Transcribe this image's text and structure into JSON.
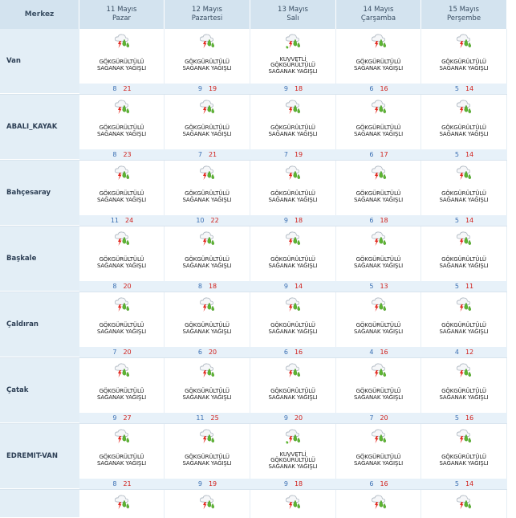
{
  "header": {
    "merkez_label": "Merkez",
    "days": [
      {
        "date": "11 Mayıs",
        "weekday": "Pazar"
      },
      {
        "date": "12 Mayıs",
        "weekday": "Pazartesi"
      },
      {
        "date": "13 Mayıs",
        "weekday": "Salı"
      },
      {
        "date": "14 Mayıs",
        "weekday": "Çarşamba"
      },
      {
        "date": "15 Mayıs",
        "weekday": "Perşembe"
      }
    ]
  },
  "colors": {
    "min_temp": "#3a6fb3",
    "max_temp": "#d0201b",
    "header_bg": "#d3e3ef",
    "city_bg": "#e3eef6"
  },
  "rows": [
    {
      "city": "Van",
      "days": [
        {
          "icon": "thunderstorm-icon",
          "lines": [
            "GÖKGÜRÜLTÜLÜ",
            "SAĞANAK YAĞIŞLI"
          ],
          "min": "8",
          "max": "21"
        },
        {
          "icon": "thunderstorm-icon",
          "lines": [
            "GÖKGÜRÜLTÜLÜ",
            "SAĞANAK YAĞIŞLI"
          ],
          "min": "9",
          "max": "19"
        },
        {
          "icon": "strong-thunderstorm-icon",
          "lines": [
            "KUVVETLİ",
            "GÖKGÜRÜLTÜLÜ",
            "SAĞANAK YAĞIŞLI"
          ],
          "min": "9",
          "max": "18"
        },
        {
          "icon": "thunderstorm-icon",
          "lines": [
            "GÖKGÜRÜLTÜLÜ",
            "SAĞANAK YAĞIŞLI"
          ],
          "min": "6",
          "max": "16"
        },
        {
          "icon": "thunderstorm-icon",
          "lines": [
            "GÖKGÜRÜLTÜLÜ",
            "SAĞANAK YAĞIŞLI"
          ],
          "min": "5",
          "max": "14"
        }
      ]
    },
    {
      "city": "ABALI_KAYAK",
      "days": [
        {
          "icon": "thunderstorm-icon",
          "lines": [
            "GÖKGÜRÜLTÜLÜ",
            "SAĞANAK YAĞIŞLI"
          ],
          "min": "8",
          "max": "23"
        },
        {
          "icon": "thunderstorm-icon",
          "lines": [
            "GÖKGÜRÜLTÜLÜ",
            "SAĞANAK YAĞIŞLI"
          ],
          "min": "7",
          "max": "21"
        },
        {
          "icon": "thunderstorm-icon",
          "lines": [
            "GÖKGÜRÜLTÜLÜ",
            "SAĞANAK YAĞIŞLI"
          ],
          "min": "7",
          "max": "19"
        },
        {
          "icon": "thunderstorm-icon",
          "lines": [
            "GÖKGÜRÜLTÜLÜ",
            "SAĞANAK YAĞIŞLI"
          ],
          "min": "6",
          "max": "17"
        },
        {
          "icon": "thunderstorm-icon",
          "lines": [
            "GÖKGÜRÜLTÜLÜ",
            "SAĞANAK YAĞIŞLI"
          ],
          "min": "5",
          "max": "14"
        }
      ]
    },
    {
      "city": "Bahçesaray",
      "days": [
        {
          "icon": "thunderstorm-icon",
          "lines": [
            "GÖKGÜRÜLTÜLÜ",
            "SAĞANAK YAĞIŞLI"
          ],
          "min": "11",
          "max": "24"
        },
        {
          "icon": "thunderstorm-icon",
          "lines": [
            "GÖKGÜRÜLTÜLÜ",
            "SAĞANAK YAĞIŞLI"
          ],
          "min": "10",
          "max": "22"
        },
        {
          "icon": "thunderstorm-icon",
          "lines": [
            "GÖKGÜRÜLTÜLÜ",
            "SAĞANAK YAĞIŞLI"
          ],
          "min": "9",
          "max": "18"
        },
        {
          "icon": "thunderstorm-icon",
          "lines": [
            "GÖKGÜRÜLTÜLÜ",
            "SAĞANAK YAĞIŞLI"
          ],
          "min": "6",
          "max": "18"
        },
        {
          "icon": "thunderstorm-icon",
          "lines": [
            "GÖKGÜRÜLTÜLÜ",
            "SAĞANAK YAĞIŞLI"
          ],
          "min": "5",
          "max": "14"
        }
      ]
    },
    {
      "city": "Başkale",
      "days": [
        {
          "icon": "thunderstorm-icon",
          "lines": [
            "GÖKGÜRÜLTÜLÜ",
            "SAĞANAK YAĞIŞLI"
          ],
          "min": "8",
          "max": "20"
        },
        {
          "icon": "thunderstorm-icon",
          "lines": [
            "GÖKGÜRÜLTÜLÜ",
            "SAĞANAK YAĞIŞLI"
          ],
          "min": "8",
          "max": "18"
        },
        {
          "icon": "thunderstorm-icon",
          "lines": [
            "GÖKGÜRÜLTÜLÜ",
            "SAĞANAK YAĞIŞLI"
          ],
          "min": "9",
          "max": "14"
        },
        {
          "icon": "thunderstorm-icon",
          "lines": [
            "GÖKGÜRÜLTÜLÜ",
            "SAĞANAK YAĞIŞLI"
          ],
          "min": "5",
          "max": "13"
        },
        {
          "icon": "thunderstorm-icon",
          "lines": [
            "GÖKGÜRÜLTÜLÜ",
            "SAĞANAK YAĞIŞLI"
          ],
          "min": "5",
          "max": "11"
        }
      ]
    },
    {
      "city": "Çaldıran",
      "days": [
        {
          "icon": "thunderstorm-icon",
          "lines": [
            "GÖKGÜRÜLTÜLÜ",
            "SAĞANAK YAĞIŞLI"
          ],
          "min": "7",
          "max": "20"
        },
        {
          "icon": "thunderstorm-icon",
          "lines": [
            "GÖKGÜRÜLTÜLÜ",
            "SAĞANAK YAĞIŞLI"
          ],
          "min": "6",
          "max": "20"
        },
        {
          "icon": "thunderstorm-icon",
          "lines": [
            "GÖKGÜRÜLTÜLÜ",
            "SAĞANAK YAĞIŞLI"
          ],
          "min": "6",
          "max": "16"
        },
        {
          "icon": "thunderstorm-icon",
          "lines": [
            "GÖKGÜRÜLTÜLÜ",
            "SAĞANAK YAĞIŞLI"
          ],
          "min": "4",
          "max": "16"
        },
        {
          "icon": "thunderstorm-icon",
          "lines": [
            "GÖKGÜRÜLTÜLÜ",
            "SAĞANAK YAĞIŞLI"
          ],
          "min": "4",
          "max": "12"
        }
      ]
    },
    {
      "city": "Çatak",
      "days": [
        {
          "icon": "thunderstorm-icon",
          "lines": [
            "GÖKGÜRÜLTÜLÜ",
            "SAĞANAK YAĞIŞLI"
          ],
          "min": "9",
          "max": "27"
        },
        {
          "icon": "thunderstorm-icon",
          "lines": [
            "GÖKGÜRÜLTÜLÜ",
            "SAĞANAK YAĞIŞLI"
          ],
          "min": "11",
          "max": "25"
        },
        {
          "icon": "thunderstorm-icon",
          "lines": [
            "GÖKGÜRÜLTÜLÜ",
            "SAĞANAK YAĞIŞLI"
          ],
          "min": "9",
          "max": "20"
        },
        {
          "icon": "thunderstorm-icon",
          "lines": [
            "GÖKGÜRÜLTÜLÜ",
            "SAĞANAK YAĞIŞLI"
          ],
          "min": "7",
          "max": "20"
        },
        {
          "icon": "thunderstorm-icon",
          "lines": [
            "GÖKGÜRÜLTÜLÜ",
            "SAĞANAK YAĞIŞLI"
          ],
          "min": "5",
          "max": "16"
        }
      ]
    },
    {
      "city": "EDREMIT-VAN",
      "days": [
        {
          "icon": "thunderstorm-icon",
          "lines": [
            "GÖKGÜRÜLTÜLÜ",
            "SAĞANAK YAĞIŞLI"
          ],
          "min": "8",
          "max": "21"
        },
        {
          "icon": "thunderstorm-icon",
          "lines": [
            "GÖKGÜRÜLTÜLÜ",
            "SAĞANAK YAĞIŞLI"
          ],
          "min": "9",
          "max": "19"
        },
        {
          "icon": "strong-thunderstorm-icon",
          "lines": [
            "KUVVETLİ",
            "GÖKGÜRÜLTÜLÜ",
            "SAĞANAK YAĞIŞLI"
          ],
          "min": "9",
          "max": "18"
        },
        {
          "icon": "thunderstorm-icon",
          "lines": [
            "GÖKGÜRÜLTÜLÜ",
            "SAĞANAK YAĞIŞLI"
          ],
          "min": "6",
          "max": "16"
        },
        {
          "icon": "thunderstorm-icon",
          "lines": [
            "GÖKGÜRÜLTÜLÜ",
            "SAĞANAK YAĞIŞLI"
          ],
          "min": "5",
          "max": "14"
        }
      ]
    },
    {
      "city": "",
      "partial": true,
      "days": [
        {
          "icon": "thunderstorm-icon"
        },
        {
          "icon": "thunderstorm-icon"
        },
        {
          "icon": "thunderstorm-icon"
        },
        {
          "icon": "thunderstorm-icon"
        },
        {
          "icon": "thunderstorm-icon"
        }
      ]
    }
  ]
}
